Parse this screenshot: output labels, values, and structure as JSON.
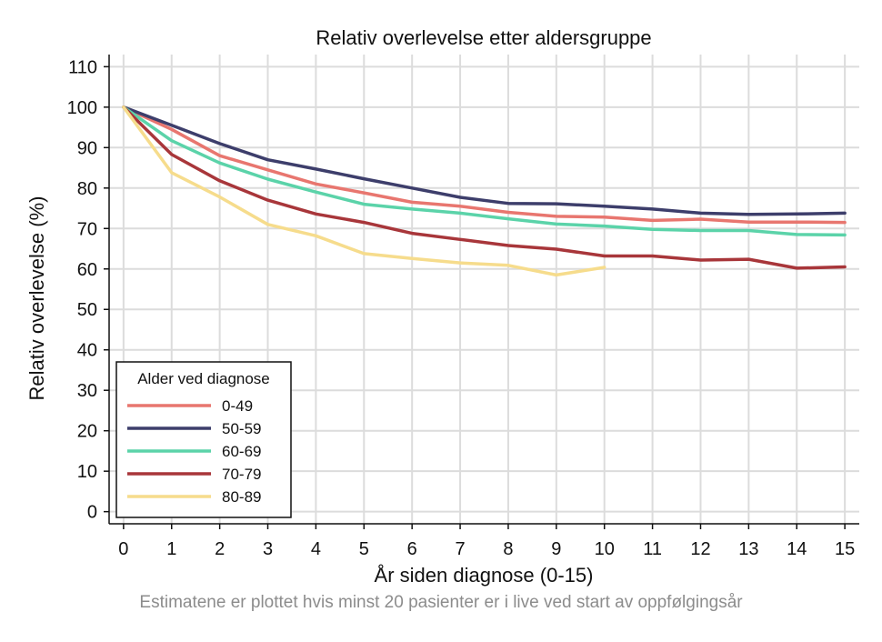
{
  "chart_data": {
    "type": "line",
    "title": "Relativ overlevelse etter aldersgruppe",
    "xlabel": "År siden diagnose (0-15)",
    "ylabel": "Relativ overlevelse (%)",
    "xlim": [
      -0.3,
      15.3
    ],
    "ylim": [
      -3,
      113
    ],
    "x_ticks": [
      0,
      1,
      2,
      3,
      4,
      5,
      6,
      7,
      8,
      9,
      10,
      11,
      12,
      13,
      14,
      15
    ],
    "y_ticks": [
      0,
      10,
      20,
      30,
      40,
      50,
      60,
      70,
      80,
      90,
      100,
      110
    ],
    "grid": true,
    "legend": {
      "title": "Alder ved diagnose",
      "position": "bottom-left"
    },
    "series": [
      {
        "name": "0-49",
        "color": "#e8766f",
        "x": [
          0,
          1,
          2,
          3,
          4,
          5,
          6,
          7,
          8,
          9,
          10,
          11,
          12,
          13,
          14,
          15
        ],
        "y": [
          100,
          94.5,
          88,
          84.5,
          81,
          78.8,
          76.5,
          75.5,
          74,
          73,
          72.8,
          72,
          72.3,
          71.6,
          71.6,
          71.5
        ]
      },
      {
        "name": "50-59",
        "color": "#3d3e6b",
        "x": [
          0,
          1,
          2,
          3,
          4,
          5,
          6,
          7,
          8,
          9,
          10,
          11,
          12,
          13,
          14,
          15
        ],
        "y": [
          100,
          95.5,
          91,
          87,
          84.7,
          82.3,
          80,
          77.7,
          76.2,
          76.1,
          75.5,
          74.8,
          73.8,
          73.5,
          73.6,
          73.8
        ]
      },
      {
        "name": "60-69",
        "color": "#5bd3a9",
        "x": [
          0,
          1,
          2,
          3,
          4,
          5,
          6,
          7,
          8,
          9,
          10,
          11,
          12,
          13,
          14,
          15
        ],
        "y": [
          100,
          91.7,
          86.2,
          82.2,
          79,
          76,
          74.8,
          73.8,
          72.4,
          71.1,
          70.6,
          69.8,
          69.5,
          69.5,
          68.5,
          68.4
        ]
      },
      {
        "name": "70-79",
        "color": "#a8363a",
        "x": [
          0,
          1,
          2,
          3,
          4,
          5,
          6,
          7,
          8,
          9,
          10,
          11,
          12,
          13,
          14,
          15
        ],
        "y": [
          100,
          88.3,
          81.8,
          77,
          73.6,
          71.5,
          68.8,
          67.3,
          65.8,
          64.9,
          63.2,
          63.2,
          62.2,
          62.4,
          60.2,
          60.5
        ]
      },
      {
        "name": "80-89",
        "color": "#f6dc8c",
        "x": [
          0,
          1,
          2,
          3,
          4,
          5,
          6,
          7,
          8,
          9,
          10
        ],
        "y": [
          100,
          83.8,
          77.8,
          71,
          68.2,
          63.8,
          62.6,
          61.5,
          60.9,
          58.5,
          60.4
        ]
      }
    ],
    "note": "Estimatene er plottet hvis minst 20 pasienter er i live ved start av oppfølgingsår"
  }
}
